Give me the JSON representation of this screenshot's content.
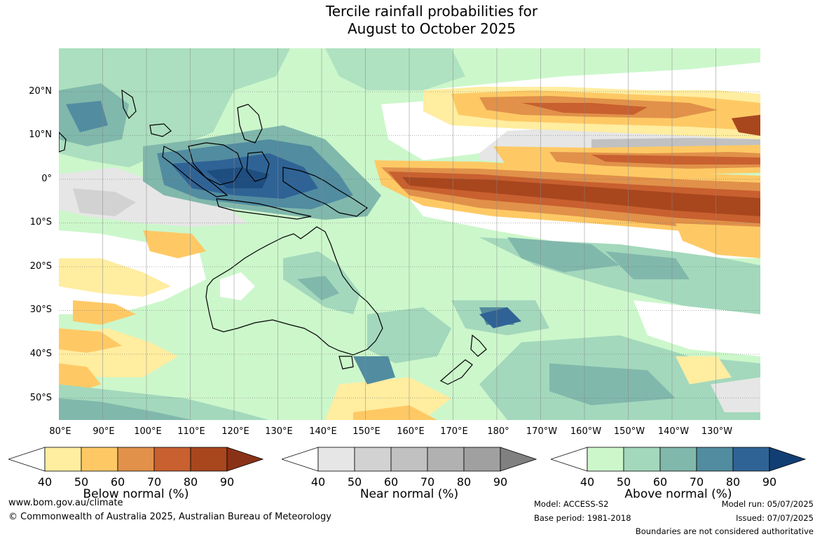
{
  "title": {
    "line1": "Tercile rainfall probabilities for",
    "line2": "August to October 2025"
  },
  "map": {
    "latitude_labels": [
      "20°N",
      "10°N",
      "0°",
      "10°S",
      "20°S",
      "30°S",
      "40°S",
      "50°S"
    ],
    "longitude_labels": [
      "80°E",
      "90°E",
      "100°E",
      "110°E",
      "120°E",
      "130°E",
      "140°E",
      "150°E",
      "160°E",
      "170°E",
      "180°",
      "170°W",
      "160°W",
      "150°W",
      "140°W",
      "130°W"
    ]
  },
  "legends": [
    {
      "title": "Below normal (%)",
      "ticks": [
        "40",
        "50",
        "60",
        "70",
        "80",
        "90"
      ],
      "colors": [
        "#ffffff",
        "#ffeda0",
        "#fec965",
        "#e1914a",
        "#c8602f",
        "#a8461e",
        "#8a3217"
      ]
    },
    {
      "title": "Near normal (%)",
      "ticks": [
        "40",
        "50",
        "60",
        "70",
        "80",
        "90"
      ],
      "colors": [
        "#ffffff",
        "#e6e6e6",
        "#d2d2d2",
        "#c1c1c1",
        "#b1b1b1",
        "#a0a0a0",
        "#808080"
      ]
    },
    {
      "title": "Above normal (%)",
      "ticks": [
        "40",
        "50",
        "60",
        "70",
        "80",
        "90"
      ],
      "colors": [
        "#ffffff",
        "#ccf7cb",
        "#a3d8bc",
        "#81b8ac",
        "#528ca0",
        "#306395",
        "#123f73"
      ]
    }
  ],
  "footer": {
    "website": "www.bom.gov.au/climate",
    "copyright": "© Commonwealth of Australia 2025, Australian Bureau of Meteorology",
    "model": "Model: ACCESS-S2",
    "base_period": "Base period: 1981-2018",
    "model_run": "Model run: 05/07/2025",
    "issued": "Issued: 07/07/2025",
    "disclaimer": "Boundaries are not considered authoritative"
  }
}
